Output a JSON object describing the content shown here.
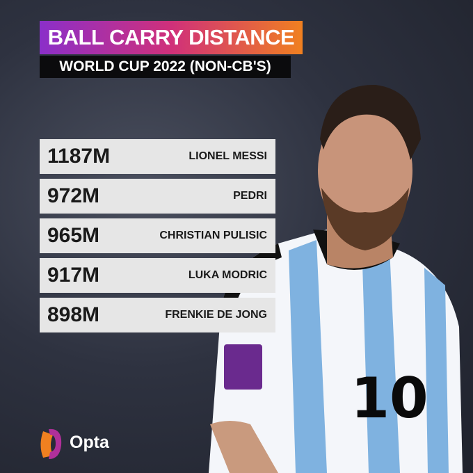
{
  "header": {
    "title": "BALL CARRY DISTANCE",
    "subtitle": "WORLD CUP 2022 (NON-CB'S)"
  },
  "table": {
    "rows": [
      [
        "1187M",
        "LIONEL MESSI"
      ],
      [
        "972M",
        "PEDRI"
      ],
      [
        "965M",
        "CHRISTIAN PULISIC"
      ],
      [
        "917M",
        "LUKA MODRIC"
      ],
      [
        "898M",
        "FRENKIE DE JONG"
      ]
    ]
  },
  "photo": {
    "jersey_number": "10"
  },
  "footer": {
    "brand": "Opta"
  }
}
